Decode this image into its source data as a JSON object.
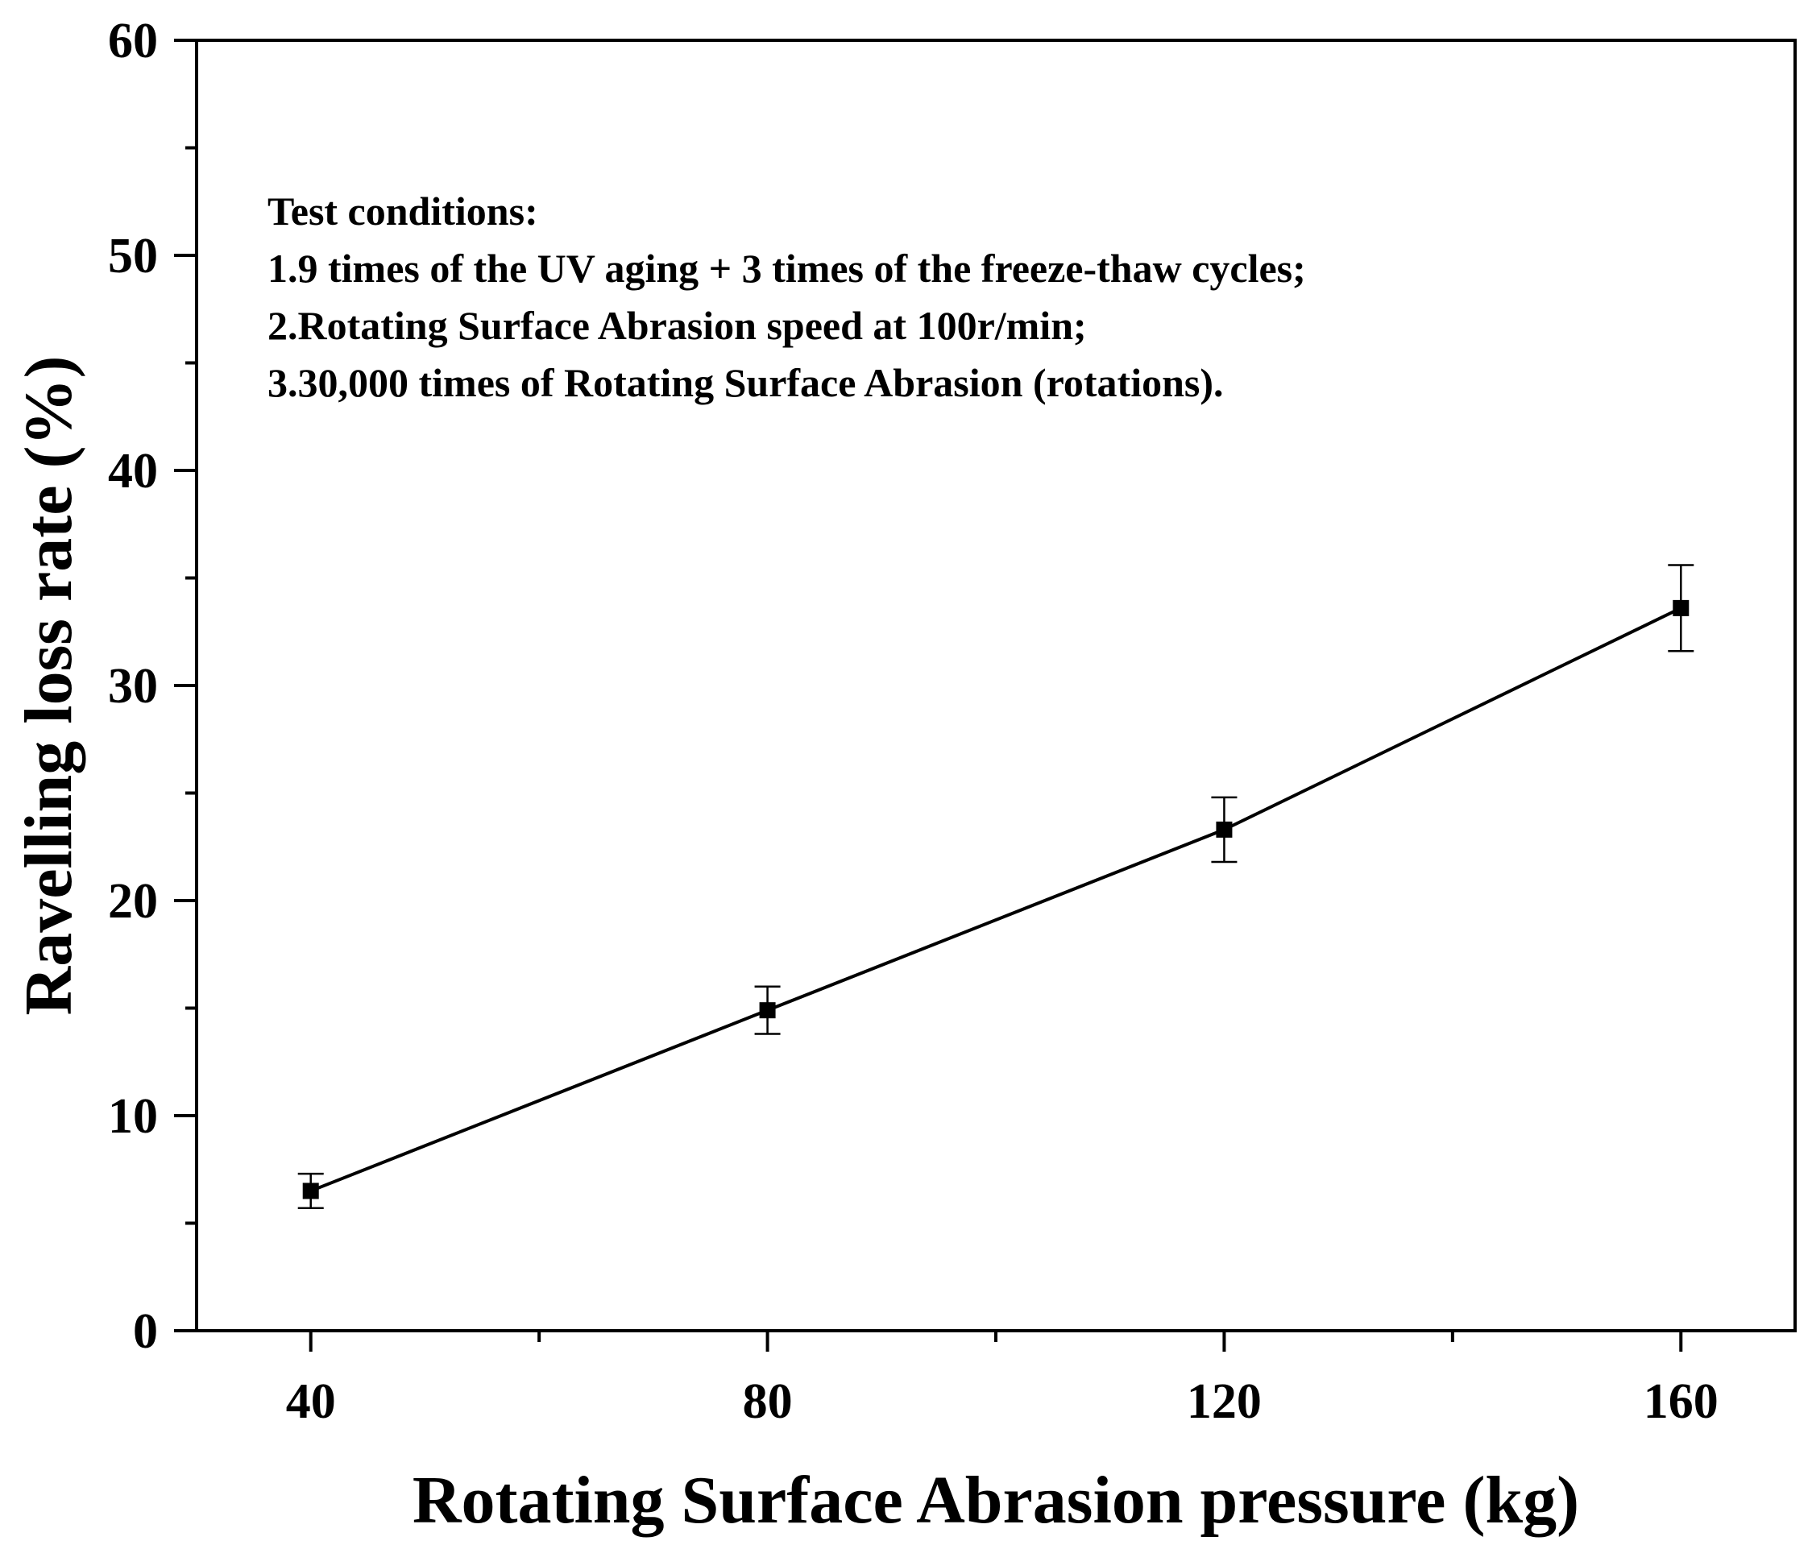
{
  "chart_data": {
    "type": "line",
    "xlabel": "Rotating Surface Abrasion pressure (kg)",
    "ylabel": "Ravelling loss rate (%)",
    "xlim": [
      30,
      170
    ],
    "ylim": [
      0,
      60
    ],
    "xticks": [
      40,
      80,
      120,
      160
    ],
    "yticks": [
      0,
      10,
      20,
      30,
      40,
      50,
      60
    ],
    "series": [
      {
        "name": "Ravelling loss rate",
        "x": [
          40,
          80,
          120,
          160
        ],
        "y": [
          6.5,
          14.9,
          23.3,
          33.6
        ],
        "err": [
          0.8,
          1.1,
          1.5,
          2.0
        ],
        "marker": "square",
        "color": "#000000"
      }
    ],
    "annotation": {
      "lines": [
        "Test conditions:",
        "1.9 times of the UV aging + 3 times of the freeze-thaw cycles;",
        "2.Rotating Surface Abrasion speed at 100r/min;",
        "3.30,000 times of Rotating Surface Abrasion (rotations)."
      ]
    }
  }
}
